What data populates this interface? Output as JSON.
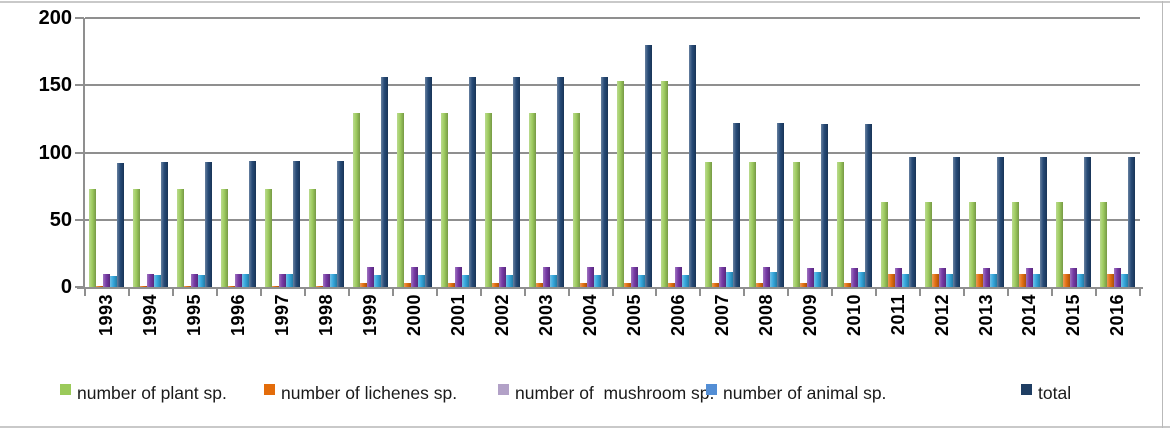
{
  "figure": {
    "background_color": "#ffffff",
    "frame_color": "#c9c9c9",
    "gridline_color": "#8f8f8f",
    "axis_text_color": "#000000",
    "legend_text_color": "#1a1a1a"
  },
  "chart_data": {
    "type": "bar",
    "title": "",
    "xlabel": "",
    "ylabel": "",
    "ylim": [
      0,
      200
    ],
    "yticks": [
      0,
      50,
      100,
      150,
      200
    ],
    "grid": true,
    "legend_position": "bottom",
    "categories": [
      "1993",
      "1994",
      "1995",
      "1996",
      "1997",
      "1998",
      "1999",
      "2000",
      "2001",
      "2002",
      "2003",
      "2004",
      "2005",
      "2006",
      "2007",
      "2008",
      "2009",
      "2010",
      "2011",
      "2012",
      "2013",
      "2014",
      "2015",
      "2016"
    ],
    "series": [
      {
        "key": "plant",
        "name": "number of plant sp.",
        "color": "#9BCA5A",
        "legend_color": "#9BCA5A",
        "values": [
          73,
          73,
          73,
          73,
          73,
          73,
          129,
          129,
          129,
          129,
          129,
          129,
          153,
          153,
          93,
          93,
          93,
          93,
          63,
          63,
          63,
          63,
          63,
          63
        ]
      },
      {
        "key": "lichenes",
        "name": "number of lichenes sp.",
        "color": "#E36C0A",
        "legend_color": "#E36C0A",
        "values": [
          1,
          1,
          1,
          1,
          1,
          1,
          3,
          3,
          3,
          3,
          3,
          3,
          3,
          3,
          3,
          3,
          3,
          3,
          10,
          10,
          10,
          10,
          10,
          10
        ]
      },
      {
        "key": "mushroom",
        "name": "number of  mushroom sp.",
        "color": "#7233A2",
        "legend_color": "#B2A1C7",
        "values": [
          10,
          10,
          10,
          10,
          10,
          10,
          15,
          15,
          15,
          15,
          15,
          15,
          15,
          15,
          15,
          15,
          14,
          14,
          14,
          14,
          14,
          14,
          14,
          14
        ]
      },
      {
        "key": "animal",
        "name": "number of animal sp.",
        "color": "#2EA4DC",
        "legend_color": "#538ED5",
        "values": [
          8,
          9,
          9,
          10,
          10,
          10,
          9,
          9,
          9,
          9,
          9,
          9,
          9,
          9,
          11,
          11,
          11,
          11,
          10,
          10,
          10,
          10,
          10,
          10
        ]
      },
      {
        "key": "total",
        "name": "total",
        "color": "#1F4472",
        "legend_color": "#1F3E63",
        "values": [
          92,
          93,
          93,
          94,
          94,
          94,
          156,
          156,
          156,
          156,
          156,
          156,
          180,
          180,
          122,
          122,
          121,
          121,
          97,
          97,
          97,
          97,
          97,
          97
        ]
      }
    ]
  }
}
